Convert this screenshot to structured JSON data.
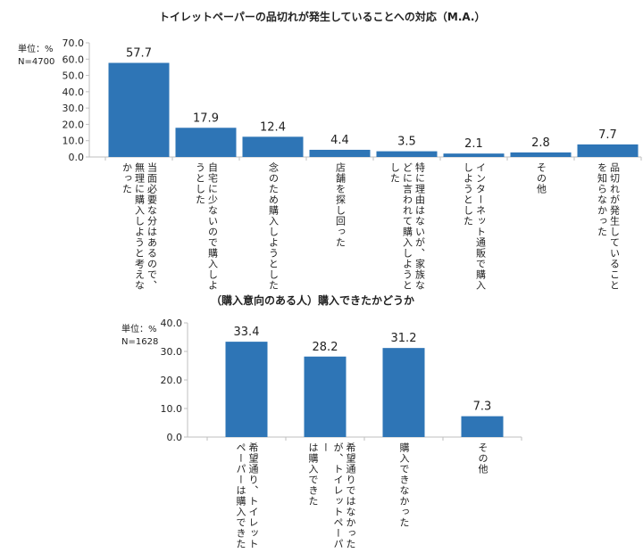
{
  "chart_data": [
    {
      "type": "bar",
      "title": "トイレットペーパーの品切れが発生していることへの対応（M.A.）",
      "unit": "単位：%",
      "n": "N=4700",
      "ylim": [
        0,
        70
      ],
      "yticks": [
        "0.0",
        "10.0",
        "20.0",
        "30.0",
        "40.0",
        "50.0",
        "60.0",
        "70.0"
      ],
      "categories": [
        "当面必要な分はあるので、\n無理に購入しようと考えな\nかった",
        "自宅に少ないので購入しよ\nうとした",
        "念のため購入しようとした",
        "店舗を探し回った",
        "特に理由はないが、家族な\nどに言われて購入しようと\nした",
        "インターネット通販で購入\nしようとした",
        "その他",
        "品切れが発生していること\nを知らなかった"
      ],
      "values": [
        57.7,
        17.9,
        12.4,
        4.4,
        3.5,
        2.1,
        2.8,
        7.7
      ],
      "value_labels": [
        "57.7",
        "17.9",
        "12.4",
        "4.4",
        "3.5",
        "2.1",
        "2.8",
        "7.7"
      ],
      "color": "#2E75B6"
    },
    {
      "type": "bar",
      "title": "（購入意向のある人）購入できたかどうか",
      "unit": "単位：%",
      "n": "N=1628",
      "ylim": [
        0,
        40
      ],
      "yticks": [
        "0.0",
        "10.0",
        "20.0",
        "30.0",
        "40.0"
      ],
      "categories": [
        "希望通り、トイレット\nペーパーは購入できた",
        "希望通りではなかった\nが、トイレットペーパー\nは購入できた",
        "購入できなかった",
        "その他"
      ],
      "values": [
        33.4,
        28.2,
        31.2,
        7.3
      ],
      "value_labels": [
        "33.4",
        "28.2",
        "31.2",
        "7.3"
      ],
      "color": "#2E75B6"
    }
  ]
}
